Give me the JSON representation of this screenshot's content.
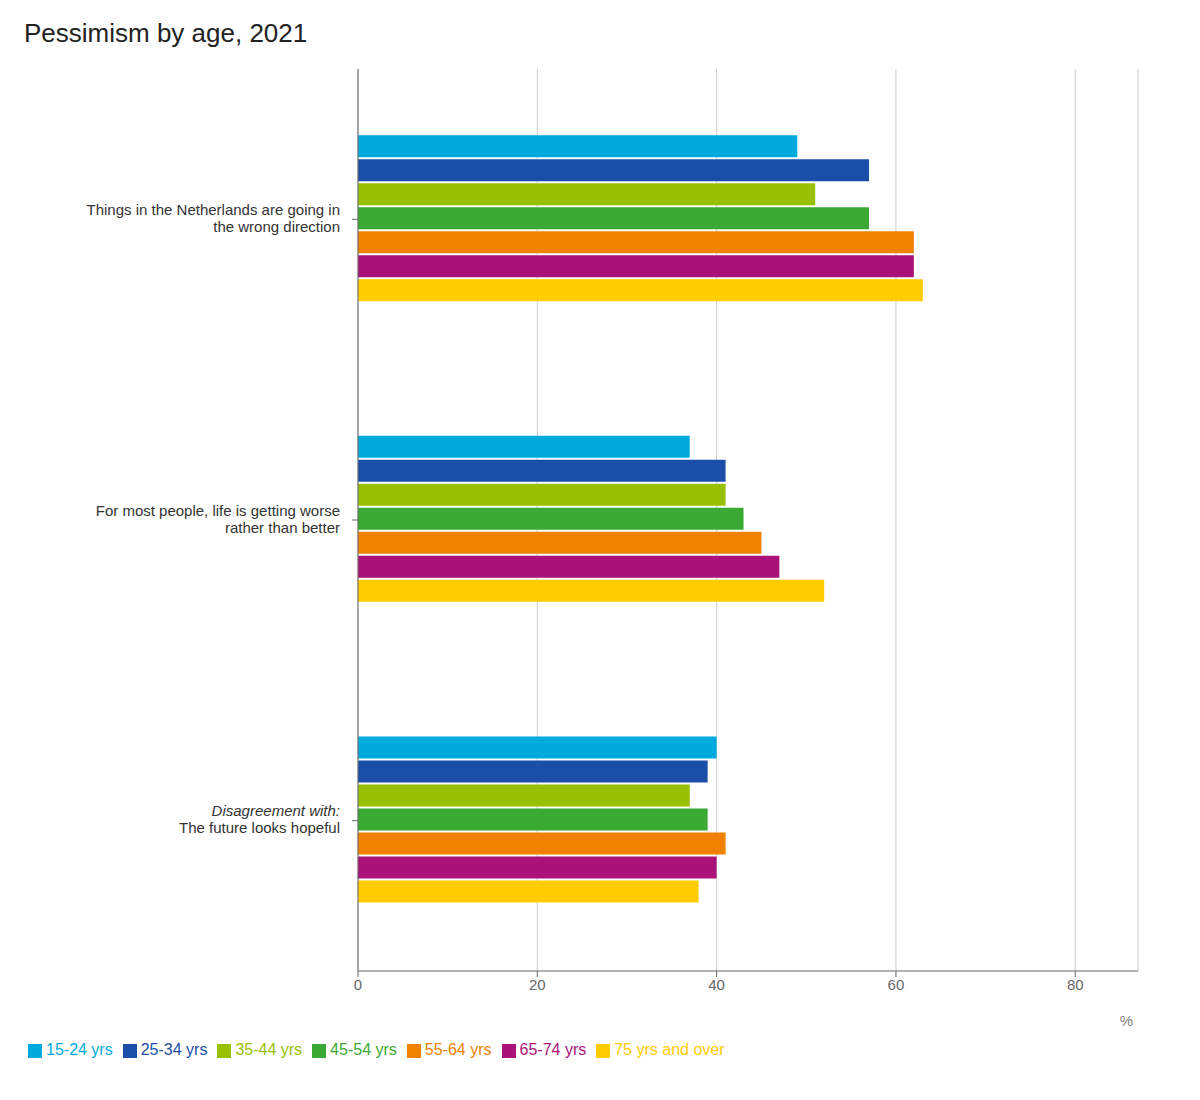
{
  "chart_data": {
    "type": "bar",
    "title": "Pessimism by age, 2021",
    "orientation": "horizontal",
    "categories": [
      "Things in the Netherlands are going in\nthe wrong direction",
      "For most people, life is getting worse\nrather than better",
      "Disagreement with:\nThe future looks hopeful"
    ],
    "series": [
      {
        "name": "15-24 yrs",
        "color": "#00AADD",
        "values": [
          49,
          37,
          40
        ]
      },
      {
        "name": "25-34 yrs",
        "color": "#1B4EA8",
        "values": [
          57,
          41,
          39
        ]
      },
      {
        "name": "35-44 yrs",
        "color": "#99C000",
        "values": [
          51,
          41,
          37
        ]
      },
      {
        "name": "45-54 yrs",
        "color": "#3AAA35",
        "values": [
          57,
          43,
          39
        ]
      },
      {
        "name": "55-64 yrs",
        "color": "#F08200",
        "values": [
          62,
          45,
          41
        ]
      },
      {
        "name": "65-74 yrs",
        "color": "#AA1179",
        "values": [
          62,
          47,
          40
        ]
      },
      {
        "name": "75 yrs and over",
        "color": "#FFCC00",
        "values": [
          63,
          52,
          38
        ]
      }
    ],
    "xlim": [
      0,
      87
    ],
    "xticks": [
      0,
      20,
      40,
      60,
      80
    ],
    "xlabel": "%",
    "grid": true,
    "legend": "bottom"
  }
}
